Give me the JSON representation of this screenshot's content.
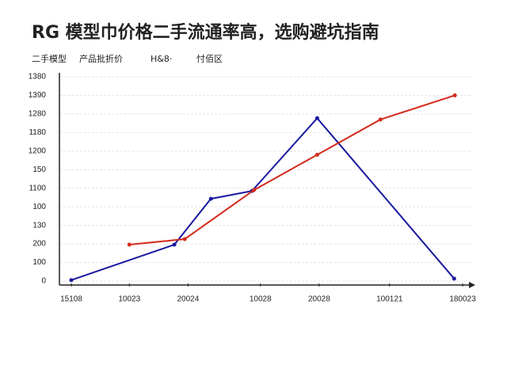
{
  "chart_data": {
    "type": "line",
    "title": "RG 模型巾价格二手流通率高，选购避坑指南",
    "legend_texts": [
      "二手模型",
      "产品批折价",
      "H&8·",
      "忖佰区"
    ],
    "x": [],
    "xlim": [
      0,
      6
    ],
    "xticks": [
      {
        "value": 0,
        "label": "15108"
      },
      {
        "value": 0.89,
        "label": "10023"
      },
      {
        "value": 1.79,
        "label": "20024"
      },
      {
        "value": 2.9,
        "label": "10028"
      },
      {
        "value": 3.8,
        "label": "20028"
      },
      {
        "value": 4.88,
        "label": "100121"
      },
      {
        "value": 6,
        "label": "180023"
      }
    ],
    "ylim": [
      0,
      11
    ],
    "yticks": [
      {
        "value": 0,
        "label": "0"
      },
      {
        "value": 1,
        "label": "100"
      },
      {
        "value": 2,
        "label": "200"
      },
      {
        "value": 3,
        "label": "130"
      },
      {
        "value": 4,
        "label": "100"
      },
      {
        "value": 5,
        "label": "1100"
      },
      {
        "value": 6,
        "label": "150"
      },
      {
        "value": 7,
        "label": "1200"
      },
      {
        "value": 8,
        "label": "1180"
      },
      {
        "value": 9,
        "label": "1280"
      },
      {
        "value": 10,
        "label": "1390"
      },
      {
        "value": 11,
        "label": "1380"
      }
    ],
    "grid": true,
    "series": [
      {
        "color": "#1a1aa0",
        "x": [
          0,
          1.58,
          2.14,
          2.77,
          3.77,
          5.87
        ],
        "values": [
          0.05,
          1.96,
          4.43,
          4.85,
          8.77,
          0.13
        ]
      },
      {
        "color": "#d42a1c",
        "x": [
          0.89,
          1.74,
          2.8,
          3.77,
          4.74,
          5.88
        ],
        "values": [
          1.96,
          2.26,
          4.9,
          6.8,
          8.7,
          10.0
        ]
      }
    ]
  }
}
